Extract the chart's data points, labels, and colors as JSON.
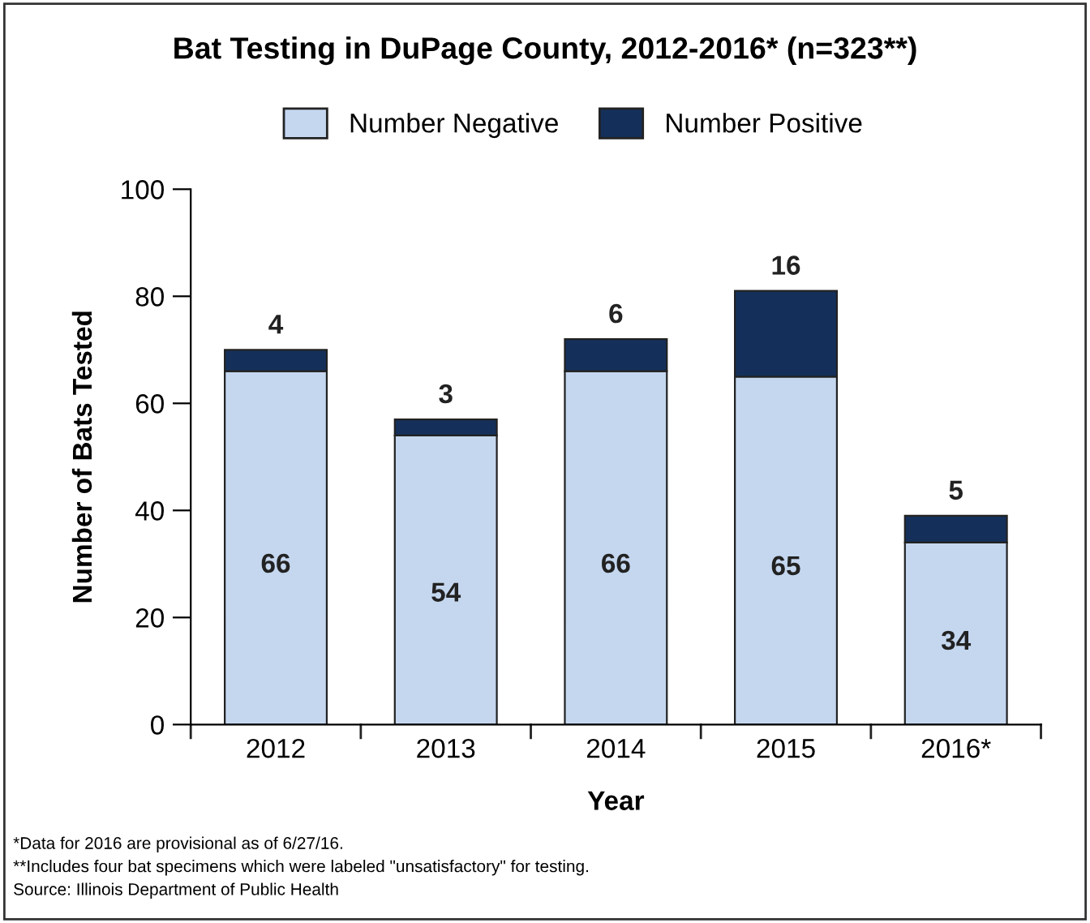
{
  "chart_data": {
    "type": "bar",
    "title": "Bat Testing in DuPage County, 2012-2016* (n=323**)",
    "xlabel": "Year",
    "ylabel": "Number of Bats Tested",
    "categories": [
      "2012",
      "2013",
      "2014",
      "2015",
      "2016*"
    ],
    "series": [
      {
        "name": "Number Negative",
        "color": "#c5d7ef",
        "values": [
          66,
          54,
          66,
          65,
          34
        ]
      },
      {
        "name": "Number Positive",
        "color": "#14305a",
        "values": [
          4,
          3,
          6,
          16,
          5
        ]
      }
    ],
    "stacked": true,
    "data_labels": true,
    "ylim": [
      0,
      100
    ],
    "yticks": [
      0,
      20,
      40,
      60,
      80,
      100
    ],
    "grid": false,
    "legend": "top",
    "annotations": [
      "*Data for 2016 are provisional as of 6/27/16.",
      "**Includes four bat specimens which were labeled \"unsatisfactory\" for testing.",
      "Source: Illinois Department of Public Health"
    ]
  }
}
